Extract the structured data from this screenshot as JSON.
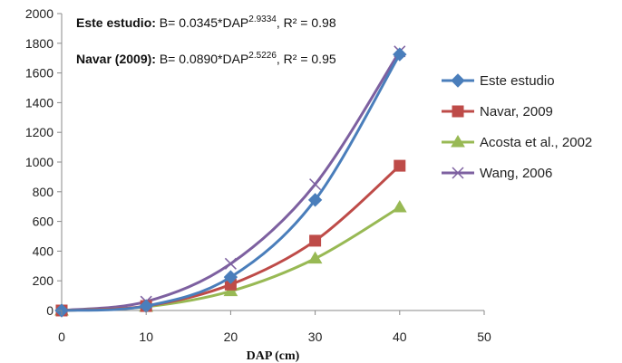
{
  "chart_data": {
    "type": "line",
    "xlabel": "DAP (cm)",
    "ylabel": "",
    "xlim": [
      0,
      50
    ],
    "ylim": [
      0,
      2000
    ],
    "x_ticks": [
      "0",
      "10",
      "20",
      "30",
      "40",
      "50"
    ],
    "y_ticks": [
      "0",
      "200",
      "400",
      "600",
      "800",
      "1000",
      "1200",
      "1400",
      "1600",
      "1800",
      "2000"
    ],
    "grid": false,
    "legend_position": "right",
    "annotations": [
      {
        "bold": "Este estudio:",
        "text": " B= 0.0345*DAP",
        "sup": "2.9334",
        "rest": ", R² = 0.98"
      },
      {
        "bold": "Navar (2009):",
        "text": " B= 0.0890*DAP",
        "sup": "2.5226",
        "rest": ", R² = 0.95"
      }
    ],
    "series": [
      {
        "name": "Este estudio",
        "color": "#4a7ebb",
        "marker": "diamond",
        "x": [
          0,
          10,
          20,
          30,
          40
        ],
        "y": [
          0,
          30,
          225,
          745,
          1725
        ]
      },
      {
        "name": "Navar, 2009",
        "color": "#be4b48",
        "marker": "square",
        "x": [
          0,
          10,
          20,
          30,
          40
        ],
        "y": [
          0,
          30,
          175,
          470,
          975
        ]
      },
      {
        "name": "Acosta et al., 2002",
        "color": "#98b954",
        "marker": "triangle",
        "x": [
          0,
          10,
          20,
          30,
          40
        ],
        "y": [
          0,
          25,
          130,
          350,
          695
        ]
      },
      {
        "name": "Wang, 2006",
        "color": "#7d60a0",
        "marker": "cross",
        "x": [
          0,
          10,
          20,
          30,
          40
        ],
        "y": [
          0,
          60,
          315,
          850,
          1745
        ]
      }
    ]
  }
}
